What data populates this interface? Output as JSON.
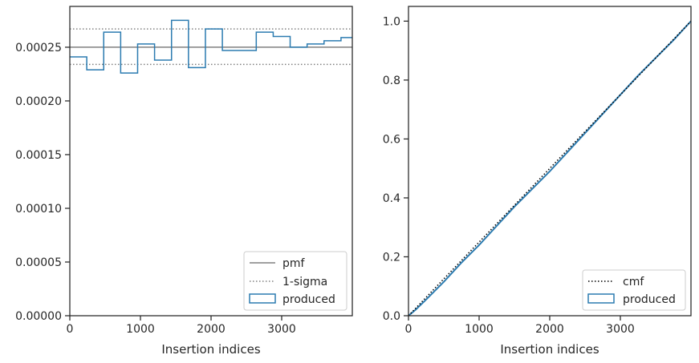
{
  "chart_data": [
    {
      "type": "line",
      "xlabel": "Insertion indices",
      "ylabel": "",
      "xlim": [
        0,
        4000
      ],
      "ylim": [
        0,
        0.000288
      ],
      "xticks": [
        0,
        1000,
        2000,
        3000
      ],
      "xtick_labels": [
        "0",
        "1000",
        "2000",
        "3000"
      ],
      "yticks": [
        0,
        5e-05,
        0.0001,
        0.00015,
        0.0002,
        0.00025
      ],
      "ytick_labels": [
        "0.00000",
        "0.00005",
        "0.00010",
        "0.00015",
        "0.00020",
        "0.00025"
      ],
      "legend_position": "lower-right",
      "pmf": {
        "name": "pmf",
        "value": 0.00025,
        "color": "#808080"
      },
      "sigma": {
        "name": "1-sigma",
        "upper": 0.000267,
        "lower": 0.000234,
        "color": "#808080"
      },
      "histogram": {
        "name": "produced",
        "color": "#2b7bb0",
        "bin_edges": [
          0,
          240,
          480,
          720,
          960,
          1200,
          1440,
          1680,
          1920,
          2160,
          2400,
          2640,
          2880,
          3120,
          3360,
          3600,
          3840,
          4000
        ],
        "values": [
          0.000241,
          0.000229,
          0.000264,
          0.000226,
          0.000253,
          0.000238,
          0.000275,
          0.000231,
          0.000267,
          0.000247,
          0.000247,
          0.000264,
          0.00026,
          0.00025,
          0.000253,
          0.000256,
          0.000259
        ]
      }
    },
    {
      "type": "line",
      "xlabel": "Insertion indices",
      "ylabel": "",
      "xlim": [
        0,
        4000
      ],
      "ylim": [
        0,
        1.05
      ],
      "xticks": [
        0,
        1000,
        2000,
        3000
      ],
      "xtick_labels": [
        "0",
        "1000",
        "2000",
        "3000"
      ],
      "yticks": [
        0,
        0.2,
        0.4,
        0.6,
        0.8,
        1.0
      ],
      "ytick_labels": [
        "0.0",
        "0.2",
        "0.4",
        "0.6",
        "0.8",
        "1.0"
      ],
      "legend_position": "lower-right",
      "cmf": {
        "name": "cmf",
        "color": "#000000",
        "x": [
          0,
          4000
        ],
        "y": [
          0,
          1.0
        ]
      },
      "produced": {
        "name": "produced",
        "color": "#2b7bb0",
        "x": [
          0,
          100,
          250,
          500,
          750,
          1000,
          1250,
          1500,
          1750,
          2000,
          2250,
          2500,
          2750,
          3000,
          3250,
          3500,
          3750,
          4000
        ],
        "y": [
          0,
          0.02,
          0.055,
          0.115,
          0.18,
          0.24,
          0.305,
          0.37,
          0.43,
          0.49,
          0.555,
          0.62,
          0.685,
          0.75,
          0.815,
          0.875,
          0.935,
          1.0
        ]
      }
    }
  ]
}
